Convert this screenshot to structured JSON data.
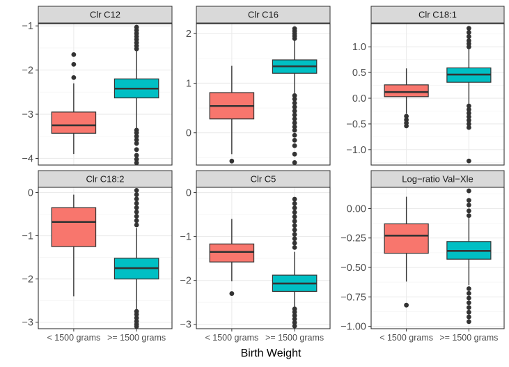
{
  "xlabel": "Birth Weight",
  "colors": {
    "low": "#F8766D",
    "high": "#00BFC4",
    "strip": "#D9D9D9",
    "grid_major": "#EBEBEB",
    "grid_minor": "#F5F5F5",
    "ink": "#333333"
  },
  "chart_data": [
    {
      "type": "box",
      "title": "Clr C12",
      "categories": [
        "< 1500 grams",
        ">= 1500 grams"
      ],
      "ylim": [
        -4.15,
        -0.95
      ],
      "yticks": [
        -4,
        -3,
        -2,
        -1
      ],
      "ytick_labels": [
        "−4",
        "−3",
        "−2",
        "−1"
      ],
      "boxes": [
        {
          "category": "< 1500 grams",
          "min": -3.9,
          "q1": -3.43,
          "median": -3.25,
          "q3": -2.95,
          "max": -2.3,
          "outliers": [
            -1.65,
            -1.87,
            -2.17
          ]
        },
        {
          "category": ">= 1500 grams",
          "min": -3.32,
          "q1": -2.63,
          "median": -2.42,
          "q3": -2.2,
          "max": -1.55,
          "outliers": [
            -1.03,
            -1.1,
            -1.17,
            -1.24,
            -1.31,
            -1.38,
            -1.45,
            -1.52,
            -3.36,
            -3.42,
            -3.5,
            -3.58,
            -3.66,
            -3.8,
            -3.93,
            -4.02,
            -4.1
          ]
        }
      ]
    },
    {
      "type": "box",
      "title": "Clr C16",
      "categories": [
        "< 1500 grams",
        ">= 1500 grams"
      ],
      "ylim": [
        -0.65,
        2.2
      ],
      "yticks": [
        0,
        1,
        2
      ],
      "ytick_labels": [
        "0",
        "1",
        "2"
      ],
      "boxes": [
        {
          "category": "< 1500 grams",
          "min": -0.43,
          "q1": 0.28,
          "median": 0.54,
          "q3": 0.81,
          "max": 1.35,
          "outliers": [
            -0.57
          ]
        },
        {
          "category": ">= 1500 grams",
          "min": 0.8,
          "q1": 1.2,
          "median": 1.34,
          "q3": 1.47,
          "max": 1.86,
          "outliers": [
            1.9,
            1.95,
            2.0,
            2.05,
            2.1,
            0.75,
            0.68,
            0.6,
            0.52,
            0.44,
            0.36,
            0.28,
            0.2,
            0.12,
            0.05,
            -0.05,
            -0.15,
            -0.26,
            -0.43,
            -0.6
          ]
        }
      ]
    },
    {
      "type": "box",
      "title": "Clr C18:1",
      "categories": [
        "< 1500 grams",
        ">= 1500 grams"
      ],
      "ylim": [
        -1.3,
        1.45
      ],
      "yticks": [
        -1,
        -0.5,
        0,
        0.5,
        1
      ],
      "ytick_labels": [
        "−1.0",
        "−0.5",
        "0.0",
        "0.5",
        "1.0"
      ],
      "boxes": [
        {
          "category": "< 1500 grams",
          "min": -0.3,
          "q1": 0.03,
          "median": 0.12,
          "q3": 0.26,
          "max": 0.58,
          "outliers": [
            -0.35,
            -0.42,
            -0.48,
            -0.54
          ]
        },
        {
          "category": ">= 1500 grams",
          "min": -0.12,
          "q1": 0.31,
          "median": 0.46,
          "q3": 0.59,
          "max": 0.96,
          "outliers": [
            1.0,
            1.06,
            1.12,
            1.2,
            1.28,
            1.36,
            -0.15,
            -0.22,
            -0.29,
            -0.36,
            -0.43,
            -0.5,
            -0.57,
            -1.22
          ]
        }
      ]
    },
    {
      "type": "box",
      "title": "Clr C18:2",
      "categories": [
        "< 1500 grams",
        ">= 1500 grams"
      ],
      "ylim": [
        -3.15,
        0.12
      ],
      "yticks": [
        -3,
        -2,
        -1,
        0
      ],
      "ytick_labels": [
        "−3",
        "−2",
        "−1",
        "0"
      ],
      "boxes": [
        {
          "category": "< 1500 grams",
          "min": -2.4,
          "q1": -1.25,
          "median": -0.68,
          "q3": -0.35,
          "max": -0.05,
          "outliers": []
        },
        {
          "category": ">= 1500 grams",
          "min": -2.7,
          "q1": -2.0,
          "median": -1.75,
          "q3": -1.52,
          "max": -0.82,
          "outliers": [
            0.05,
            -0.05,
            -0.15,
            -0.25,
            -0.35,
            -0.45,
            -0.55,
            -0.65,
            -0.75,
            -2.75,
            -2.82,
            -2.9,
            -2.98,
            -3.05,
            -3.1
          ]
        }
      ]
    },
    {
      "type": "box",
      "title": "Clr C5",
      "categories": [
        "< 1500 grams",
        ">= 1500 grams"
      ],
      "ylim": [
        -3.1,
        0.12
      ],
      "yticks": [
        -3,
        -2,
        -1,
        0
      ],
      "ytick_labels": [
        "−3",
        "−2",
        "−1",
        "0"
      ],
      "boxes": [
        {
          "category": "< 1500 grams",
          "min": -2.02,
          "q1": -1.58,
          "median": -1.35,
          "q3": -1.17,
          "max": -0.6,
          "outliers": [
            -2.3
          ]
        },
        {
          "category": ">= 1500 grams",
          "min": -2.6,
          "q1": -2.25,
          "median": -2.07,
          "q3": -1.88,
          "max": -1.35,
          "outliers": [
            -0.15,
            -0.25,
            -0.35,
            -0.45,
            -0.55,
            -0.65,
            -0.75,
            -0.85,
            -0.95,
            -1.05,
            -1.15,
            -1.25,
            -2.65,
            -2.72,
            -2.8,
            -2.88,
            -2.96,
            -3.04
          ]
        }
      ]
    },
    {
      "type": "box",
      "title": "Log−ratio Val−Xle",
      "categories": [
        "< 1500 grams",
        ">= 1500 grams"
      ],
      "ylim": [
        -1.02,
        0.18
      ],
      "yticks": [
        -1,
        -0.75,
        -0.5,
        -0.25,
        0
      ],
      "ytick_labels": [
        "−1.00",
        "−0.75",
        "−0.50",
        "−0.25",
        "0.00"
      ],
      "boxes": [
        {
          "category": "< 1500 grams",
          "min": -0.62,
          "q1": -0.38,
          "median": -0.23,
          "q3": -0.13,
          "max": 0.1,
          "outliers": [
            -0.82
          ]
        },
        {
          "category": ">= 1500 grams",
          "min": -0.65,
          "q1": -0.43,
          "median": -0.36,
          "q3": -0.28,
          "max": -0.08,
          "outliers": [
            0.15,
            0.07,
            0.03,
            -0.02,
            -0.06,
            -0.68,
            -0.72,
            -0.76,
            -0.8,
            -0.84,
            -0.88,
            -0.92,
            -0.96
          ]
        }
      ]
    }
  ]
}
